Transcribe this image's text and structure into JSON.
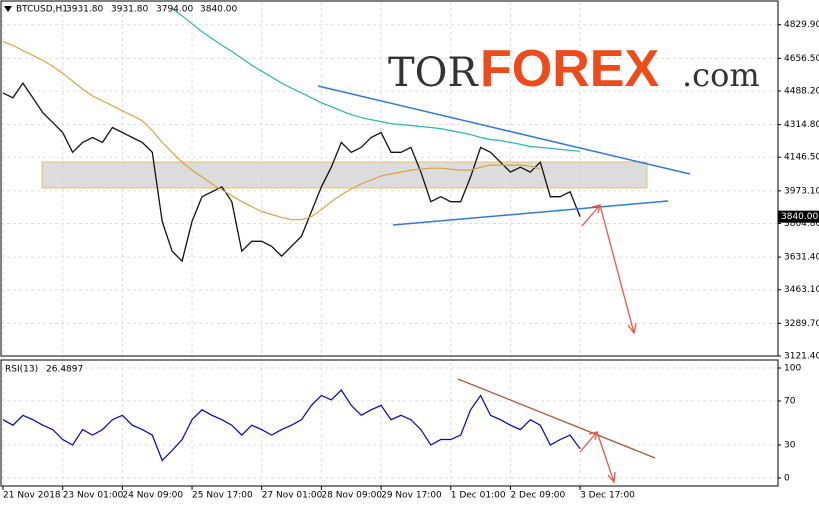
{
  "logo": {
    "prefix": "TOR",
    "brand": "FOREX",
    "suffix": ".com"
  },
  "chart_data": [
    {
      "type": "line",
      "header": {
        "symbol": "BTCUSD,H1",
        "open": "3931.80",
        "high": "3931.80",
        "low": "3794.00"
      },
      "last_price": {
        "value": 3840,
        "label": "3840.00"
      },
      "ylim": [
        3121.4,
        4947
      ],
      "yticks": [
        {
          "value": 4829.9,
          "label": "4829.90"
        },
        {
          "value": 4656.5,
          "label": "4656.50"
        },
        {
          "value": 4488.2,
          "label": "4488.20"
        },
        {
          "value": 4314.8,
          "label": "4314.80"
        },
        {
          "value": 4146.5,
          "label": "4146.50"
        },
        {
          "value": 3973.1,
          "label": "3973.10"
        },
        {
          "value": 3804.8,
          "label": "3804.80"
        },
        {
          "value": 3631.4,
          "label": "3631.40"
        },
        {
          "value": 3463.1,
          "label": "3463.10"
        },
        {
          "value": 3289.7,
          "label": "3289.70"
        },
        {
          "value": 3121.4,
          "label": "3121.40"
        }
      ],
      "grid": true,
      "series": [
        {
          "color": "#111111",
          "values": [
            4478,
            4453,
            4529,
            4453,
            4376,
            4325,
            4274,
            4172,
            4223,
            4248,
            4223,
            4300,
            4274,
            4248,
            4223,
            4172,
            3815,
            3662,
            3611,
            3815,
            3943,
            3968,
            3994,
            3917,
            3662,
            3713,
            3713,
            3687,
            3636,
            3687,
            3739,
            3866,
            3994,
            4095,
            4223,
            4172,
            4197,
            4248,
            4274,
            4172,
            4172,
            4197,
            4070,
            3917,
            3943,
            3917,
            3917,
            4045,
            4197,
            4172,
            4121,
            4070,
            4095,
            4070,
            4121,
            3943,
            3943,
            3968,
            3840
          ]
        },
        {
          "color": "#d9a441",
          "values": [
            4743,
            4723,
            4697,
            4672,
            4646,
            4616,
            4580,
            4539,
            4498,
            4463,
            4437,
            4412,
            4386,
            4361,
            4335,
            4284,
            4223,
            4172,
            4121,
            4080,
            4045,
            4009,
            3978,
            3948,
            3917,
            3892,
            3866,
            3851,
            3836,
            3825,
            3825,
            3840,
            3876,
            3917,
            3953,
            3983,
            4009,
            4029,
            4050,
            4060,
            4070,
            4080,
            4085,
            4090,
            4090,
            4085,
            4080,
            4080,
            4095,
            4106,
            4106,
            4106,
            4106,
            4100,
            4085,
            null,
            null,
            null,
            null
          ]
        },
        {
          "color": "#2bb5a8",
          "values": [
            null,
            null,
            null,
            null,
            null,
            null,
            null,
            null,
            null,
            null,
            null,
            null,
            null,
            null,
            null,
            null,
            null,
            4912,
            4876,
            4835,
            4794,
            4759,
            4723,
            4692,
            4657,
            4621,
            4590,
            4560,
            4529,
            4503,
            4478,
            4453,
            4427,
            4407,
            4386,
            4366,
            4351,
            4340,
            4330,
            4320,
            4315,
            4310,
            4305,
            4300,
            4294,
            4284,
            4274,
            4264,
            4248,
            4238,
            4233,
            4223,
            4213,
            4202,
            4197,
            4192,
            4187,
            4182,
            4177
          ]
        }
      ]
    },
    {
      "type": "line",
      "indicator": "RSI(13)",
      "ylim": [
        -7.3,
        107.3
      ],
      "yticks": [
        100,
        70,
        30,
        0
      ],
      "grid": true,
      "categories": [
        "21 Nov 2018",
        null,
        null,
        null,
        null,
        null,
        "23 Nov 01:00",
        null,
        null,
        null,
        null,
        null,
        "24 Nov 09:00",
        null,
        null,
        null,
        null,
        null,
        null,
        "25 Nov 17:00",
        null,
        null,
        null,
        null,
        null,
        null,
        "27 Nov 01:00",
        null,
        null,
        null,
        null,
        null,
        "28 Nov 09:00",
        null,
        null,
        null,
        null,
        null,
        "29 Nov 17:00",
        null,
        null,
        null,
        null,
        null,
        null,
        "1 Dec 01:00",
        null,
        null,
        null,
        null,
        null,
        "2 Dec 09:00",
        null,
        null,
        null,
        null,
        null,
        null,
        "3 Dec 17:00"
      ],
      "series": [
        {
          "color": "#0000cc",
          "values": [
            53,
            48,
            57,
            53,
            48,
            44,
            35,
            30,
            44,
            39,
            44,
            53,
            57,
            48,
            44,
            39,
            16,
            25,
            35,
            53,
            62,
            57,
            53,
            48,
            39,
            48,
            44,
            39,
            44,
            48,
            53,
            66,
            75,
            71,
            80,
            66,
            57,
            62,
            66,
            53,
            57,
            53,
            44,
            30,
            35,
            35,
            39,
            62,
            75,
            57,
            53,
            48,
            44,
            53,
            48,
            30,
            35,
            39,
            26.4897
          ]
        }
      ]
    }
  ]
}
